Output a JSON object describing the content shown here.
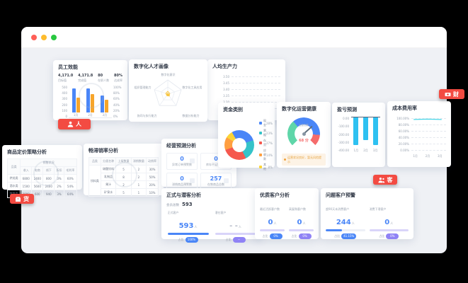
{
  "theme": {
    "badge_red": "#f34b42",
    "primary_blue": "#4a86f7",
    "purple": "#8f82f5"
  },
  "badges": {
    "ren": {
      "label": "人"
    },
    "cai": {
      "label": "财"
    },
    "huo": {
      "label": "货"
    },
    "ke": {
      "label": "客"
    }
  },
  "hr": {
    "performance": {
      "title": "员工效能",
      "stats": [
        {
          "value": "4,171.0",
          "label": "目标值"
        },
        {
          "value": "4,171.8",
          "label": "完成值"
        },
        {
          "value": "80",
          "label": "在职人数"
        },
        {
          "value": "80%",
          "label": "达成率"
        }
      ]
    },
    "talent": {
      "title": "数字化人才画像"
    },
    "productivity": {
      "title": "人均生产力"
    }
  },
  "finance": {
    "funds": {
      "title": "资金类别"
    },
    "health": {
      "title": "数字化运营健康",
      "center_label": "运营指数",
      "value_label": "68 分",
      "note": "运营状况良好，暂无风险提示"
    },
    "profit": {
      "title": "盈亏预测"
    },
    "cost": {
      "title": "成本费用率"
    }
  },
  "goods": {
    "pricing": {
      "title": "商品定价策略分析",
      "table": {
        "col0": "品类",
        "group": "销售状况",
        "headers": [
          "收入",
          "电商",
          "线下",
          "折扣",
          "毛利率"
        ],
        "rows": [
          [
            "烘焙类",
            "6800",
            "2400",
            "800",
            "3%",
            "60%"
          ],
          [
            "酒水类",
            "1500",
            "5600",
            "2400",
            "2%",
            "54%"
          ],
          [
            "零食类",
            "2800",
            "600",
            "940",
            "3%",
            "64%"
          ]
        ]
      }
    },
    "sales": {
      "title": "畅滞销率分析",
      "table": {
        "headers": [
          "品类",
          "分类名称",
          "上架数量",
          "滞销数量",
          "动销率"
        ],
        "category": "饮料类",
        "rows": [
          [
            "碳酸饮料",
            "5",
            "2",
            "30%"
          ],
          [
            "乳制品",
            "8",
            "2",
            "50%"
          ],
          [
            "果汁",
            "2",
            "1",
            "20%"
          ],
          [
            "矿泉水",
            "5",
            "1",
            "10%"
          ]
        ]
      }
    },
    "forecast": {
      "title": "经营预测分析",
      "boxes": [
        {
          "value": "0",
          "label": "异常订单预警数"
        },
        {
          "value": "0",
          "label": "库存不足预警数"
        },
        {
          "value": "0",
          "label": "滞销商品预警数"
        },
        {
          "value": "257",
          "label": "在售商品总数"
        }
      ]
    }
  },
  "customer": {
    "members": {
      "title": "正式与潜客分析",
      "total_label": "会员总数",
      "total": "593",
      "stats": [
        {
          "label": "正式客户",
          "value": "593",
          "unit": "人",
          "ratio_label": "占比",
          "badge": "100%",
          "badge_color": "#4a86f7",
          "bar_pct": 100,
          "bar_color": "#4a86f7"
        },
        {
          "label": "潜在客户",
          "value": "- -",
          "unit": "人",
          "ratio_label": "占比",
          "badge": "--",
          "badge_color": "#8f82f5",
          "bar_pct": 100,
          "bar_color": "#d9d4f9",
          "value_color": "#b3bac8"
        }
      ]
    },
    "quality": {
      "title": "优质客户分析",
      "stats": [
        {
          "label": "最近活跃客户数",
          "value": "0",
          "unit": "人",
          "ratio_label": "占比",
          "badge": "0%",
          "badge_color": "#4a86f7",
          "bar_pct": 100,
          "bar_color": "#d9d4f9"
        },
        {
          "label": "高复购客户数",
          "value": "0",
          "unit": "人",
          "ratio_label": "占比",
          "badge": "0%",
          "badge_color": "#8f82f5",
          "bar_pct": 100,
          "bar_color": "#d9d4f9"
        }
      ]
    },
    "warning": {
      "title": "问题客户预警",
      "stats": [
        {
          "label": "超90天未消费客户",
          "value": "244",
          "unit": "人",
          "ratio_label": "占比",
          "badge": "41.15%",
          "badge_color": "#4a86f7",
          "bar_pct": 41,
          "bar_color": "#4a86f7"
        },
        {
          "label": "消费下滑客户",
          "value": "0",
          "unit": "人",
          "ratio_label": "占比",
          "badge": "0%",
          "badge_color": "#8f82f5",
          "bar_pct": 100,
          "bar_color": "#d9d4f9"
        }
      ]
    }
  },
  "chart_data": [
    {
      "id": "team-performance",
      "type": "bar",
      "title": "员工效能",
      "categories": [
        "1月",
        "2月",
        "3月"
      ],
      "series": [
        {
          "name": "目标",
          "color": "#4a86f7",
          "values": [
            420,
            430,
            300
          ]
        },
        {
          "name": "完成",
          "color": "#f7a52b",
          "values": [
            260,
            330,
            230
          ]
        }
      ],
      "ylim": [
        0,
        500
      ],
      "yticks": [
        "500",
        "400",
        "300",
        "200",
        "100",
        "0"
      ],
      "yticks_right": [
        "100%",
        "80%",
        "60%",
        "40%",
        "20%",
        "0%"
      ]
    },
    {
      "id": "talent-radar",
      "type": "radar",
      "title": "数字化人才画像",
      "axes": [
        "数字化意识",
        "数字化工具应用",
        "数据分析能力",
        "协同与执行能力",
        "组织管理能力"
      ],
      "values": [
        20,
        15,
        18,
        12,
        16
      ],
      "max": 100
    },
    {
      "id": "productivity",
      "type": "line",
      "title": "人均生产力",
      "yticks": [
        "3.50",
        "3.45",
        "3.40",
        "3.35",
        "3.30",
        "3.25"
      ]
    },
    {
      "id": "funds",
      "type": "pie",
      "title": "资金类别",
      "slices": [
        {
          "label": "现金",
          "value": 28,
          "pct": "28%",
          "color": "#4a86f7"
        },
        {
          "label": "票据",
          "value": 23,
          "pct": "23%",
          "color": "#35c3c9"
        },
        {
          "label": "存货",
          "value": 27,
          "pct": "27%",
          "color": "#f5584e"
        },
        {
          "label": "应收款",
          "value": 14,
          "pct": "14%",
          "color": "#ff9f40"
        },
        {
          "label": "其他",
          "value": 8,
          "pct": "8%",
          "color": "#fbd437"
        }
      ]
    },
    {
      "id": "operation-gauge",
      "type": "gauge",
      "title": "数字化运营健康",
      "value": 68,
      "max": 100,
      "segments": [
        {
          "to": 35,
          "color": "#5fd6a9"
        },
        {
          "to": 85,
          "color": "#4a86f7"
        },
        {
          "to": 100,
          "color": "#f56c6c"
        }
      ]
    },
    {
      "id": "profit",
      "type": "bar",
      "title": "盈亏预测",
      "categories": [
        "1月",
        "2月",
        "3月"
      ],
      "values": [
        -350,
        -295,
        -355
      ],
      "color": "#2ec1f1",
      "ylim": [
        0,
        -400
      ],
      "yticks": [
        "0.00",
        "-100.00",
        "-200.00",
        "-300.00",
        "-400.00"
      ]
    },
    {
      "id": "cost-ratio",
      "type": "line",
      "title": "成本费用率",
      "categories": [
        "1月",
        "2月",
        "3月"
      ],
      "values": [
        97,
        98,
        97
      ],
      "color": "#49d6e8",
      "ylim": [
        0,
        100
      ],
      "yticks": [
        "100.00%",
        "80.00%",
        "60.00%",
        "40.00%",
        "20.00%",
        "0.00%"
      ]
    }
  ]
}
